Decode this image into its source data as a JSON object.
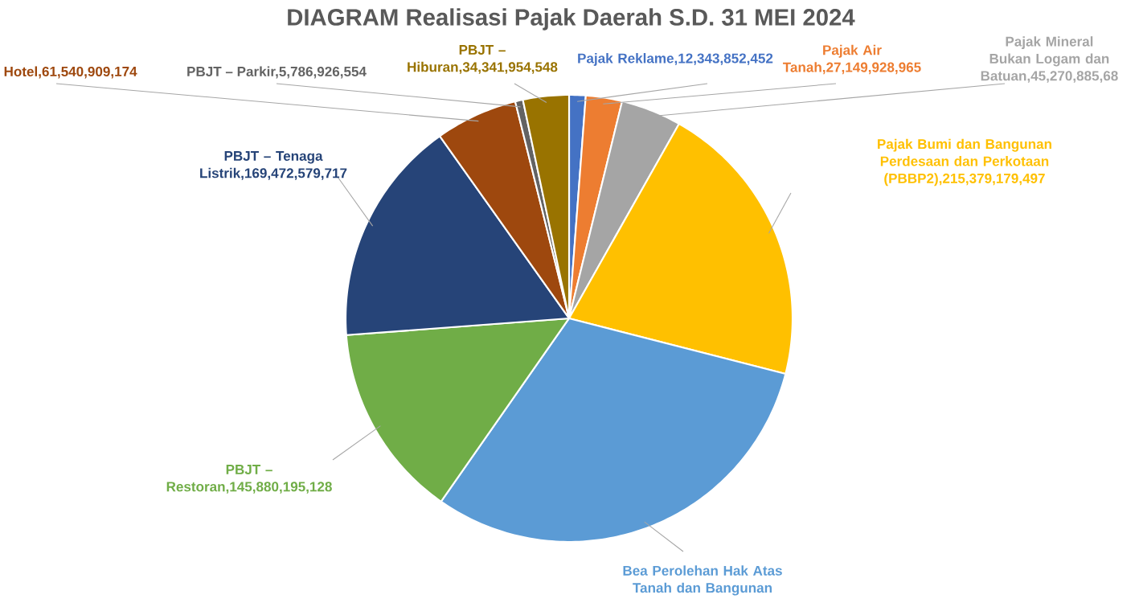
{
  "chart_data": {
    "type": "pie",
    "title": "DIAGRAM Realisasi Pajak Daerah S.D. 31 MEI 2024",
    "categories": [
      "Pajak Reklame,12,343,852,452",
      "Pajak Air Tanah,27,149,928,965",
      "Pajak Mineral Bukan Logam dan Batuan,45,270,885,68",
      "Pajak Bumi dan Bangunan Perdesaan dan Perkotaan (PBBP2),215,379,179,497",
      "Bea Perolehan Hak Atas Tanah dan Bangunan",
      "PBJT – Restoran,145,880,195,128",
      "PBJT – Tenaga Listrik,169,472,579,717",
      "Hotel,61,540,909,174",
      "PBJT – Parkir,5,786,926,554",
      "PBJT – Hiburan,34,341,954,548"
    ],
    "values": [
      12343852452,
      27149928965,
      45270885680,
      215379179497,
      318000000000,
      145880195128,
      169472579717,
      61540909174,
      5786926554,
      34341954548
    ],
    "colors": [
      "#4472c4",
      "#ed7d31",
      "#a5a5a5",
      "#ffc000",
      "#5b9bd5",
      "#70ad47",
      "#264478",
      "#9e480e",
      "#636363",
      "#997300"
    ]
  }
}
